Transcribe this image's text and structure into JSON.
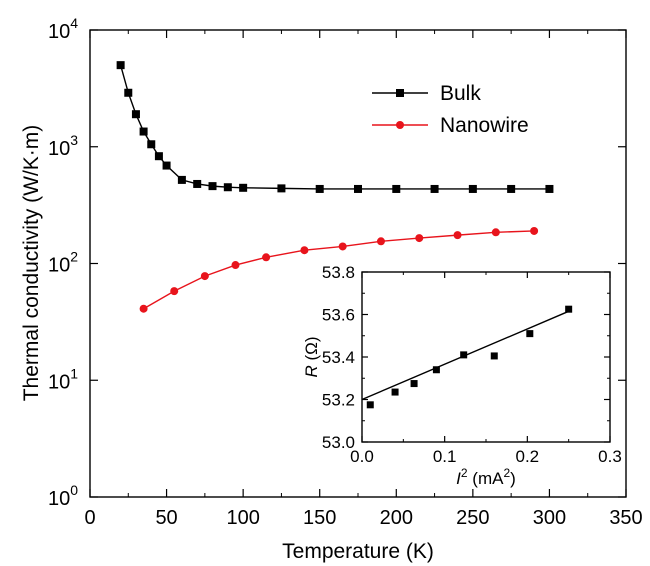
{
  "chart_data": [
    {
      "type": "line",
      "xlabel": "Temperature (K)",
      "ylabel": "Thermal conductivity (W/K·m)",
      "xlim": [
        0,
        350
      ],
      "ylim": [
        1,
        10000
      ],
      "yscale": "log",
      "xticks": [
        "0",
        "50",
        "100",
        "150",
        "200",
        "250",
        "300",
        "350"
      ],
      "yticks": [
        {
          "base": "10",
          "exp": "0"
        },
        {
          "base": "10",
          "exp": "1"
        },
        {
          "base": "10",
          "exp": "2"
        },
        {
          "base": "10",
          "exp": "3"
        },
        {
          "base": "10",
          "exp": "4"
        }
      ],
      "grid": false,
      "legend": "top-right",
      "series": [
        {
          "name": "Bulk",
          "color": "#000000",
          "marker": "square",
          "x": [
            20,
            25,
            30,
            35,
            40,
            45,
            50,
            60,
            70,
            80,
            90,
            100,
            125,
            150,
            175,
            200,
            225,
            250,
            275,
            300
          ],
          "y": [
            5000,
            2900,
            1900,
            1350,
            1050,
            830,
            690,
            520,
            480,
            460,
            450,
            445,
            440,
            435,
            435,
            435,
            435,
            435,
            435,
            435
          ]
        },
        {
          "name": "Nanowire",
          "color": "#e8141c",
          "marker": "circle",
          "x": [
            35,
            55,
            75,
            95,
            115,
            140,
            165,
            190,
            215,
            240,
            265,
            290
          ],
          "y": [
            41,
            58,
            78,
            97,
            113,
            130,
            140,
            155,
            165,
            175,
            185,
            190
          ]
        }
      ]
    },
    {
      "type": "scatter",
      "xlabel_var": "I",
      "xlabel_exp": "2",
      "xlabel_unit_pre": " (mA",
      "xlabel_unit_exp": "2",
      "xlabel_unit_post": ")",
      "ylabel_var": "R",
      "ylabel_unit": " (Ω)",
      "xlim": [
        0,
        0.3
      ],
      "ylim": [
        53.0,
        53.8
      ],
      "xticks": [
        "0.0",
        "0.1",
        "0.2",
        "0.3"
      ],
      "yticks": [
        "53.0",
        "53.2",
        "53.4",
        "53.6",
        "53.8"
      ],
      "points": {
        "x": [
          0.01,
          0.04,
          0.063,
          0.09,
          0.123,
          0.16,
          0.203,
          0.25
        ],
        "y": [
          53.175,
          53.235,
          53.275,
          53.34,
          53.41,
          53.405,
          53.51,
          53.625
        ]
      },
      "fit": {
        "x": [
          0.0,
          0.25
        ],
        "y": [
          53.2,
          53.615
        ]
      }
    }
  ]
}
